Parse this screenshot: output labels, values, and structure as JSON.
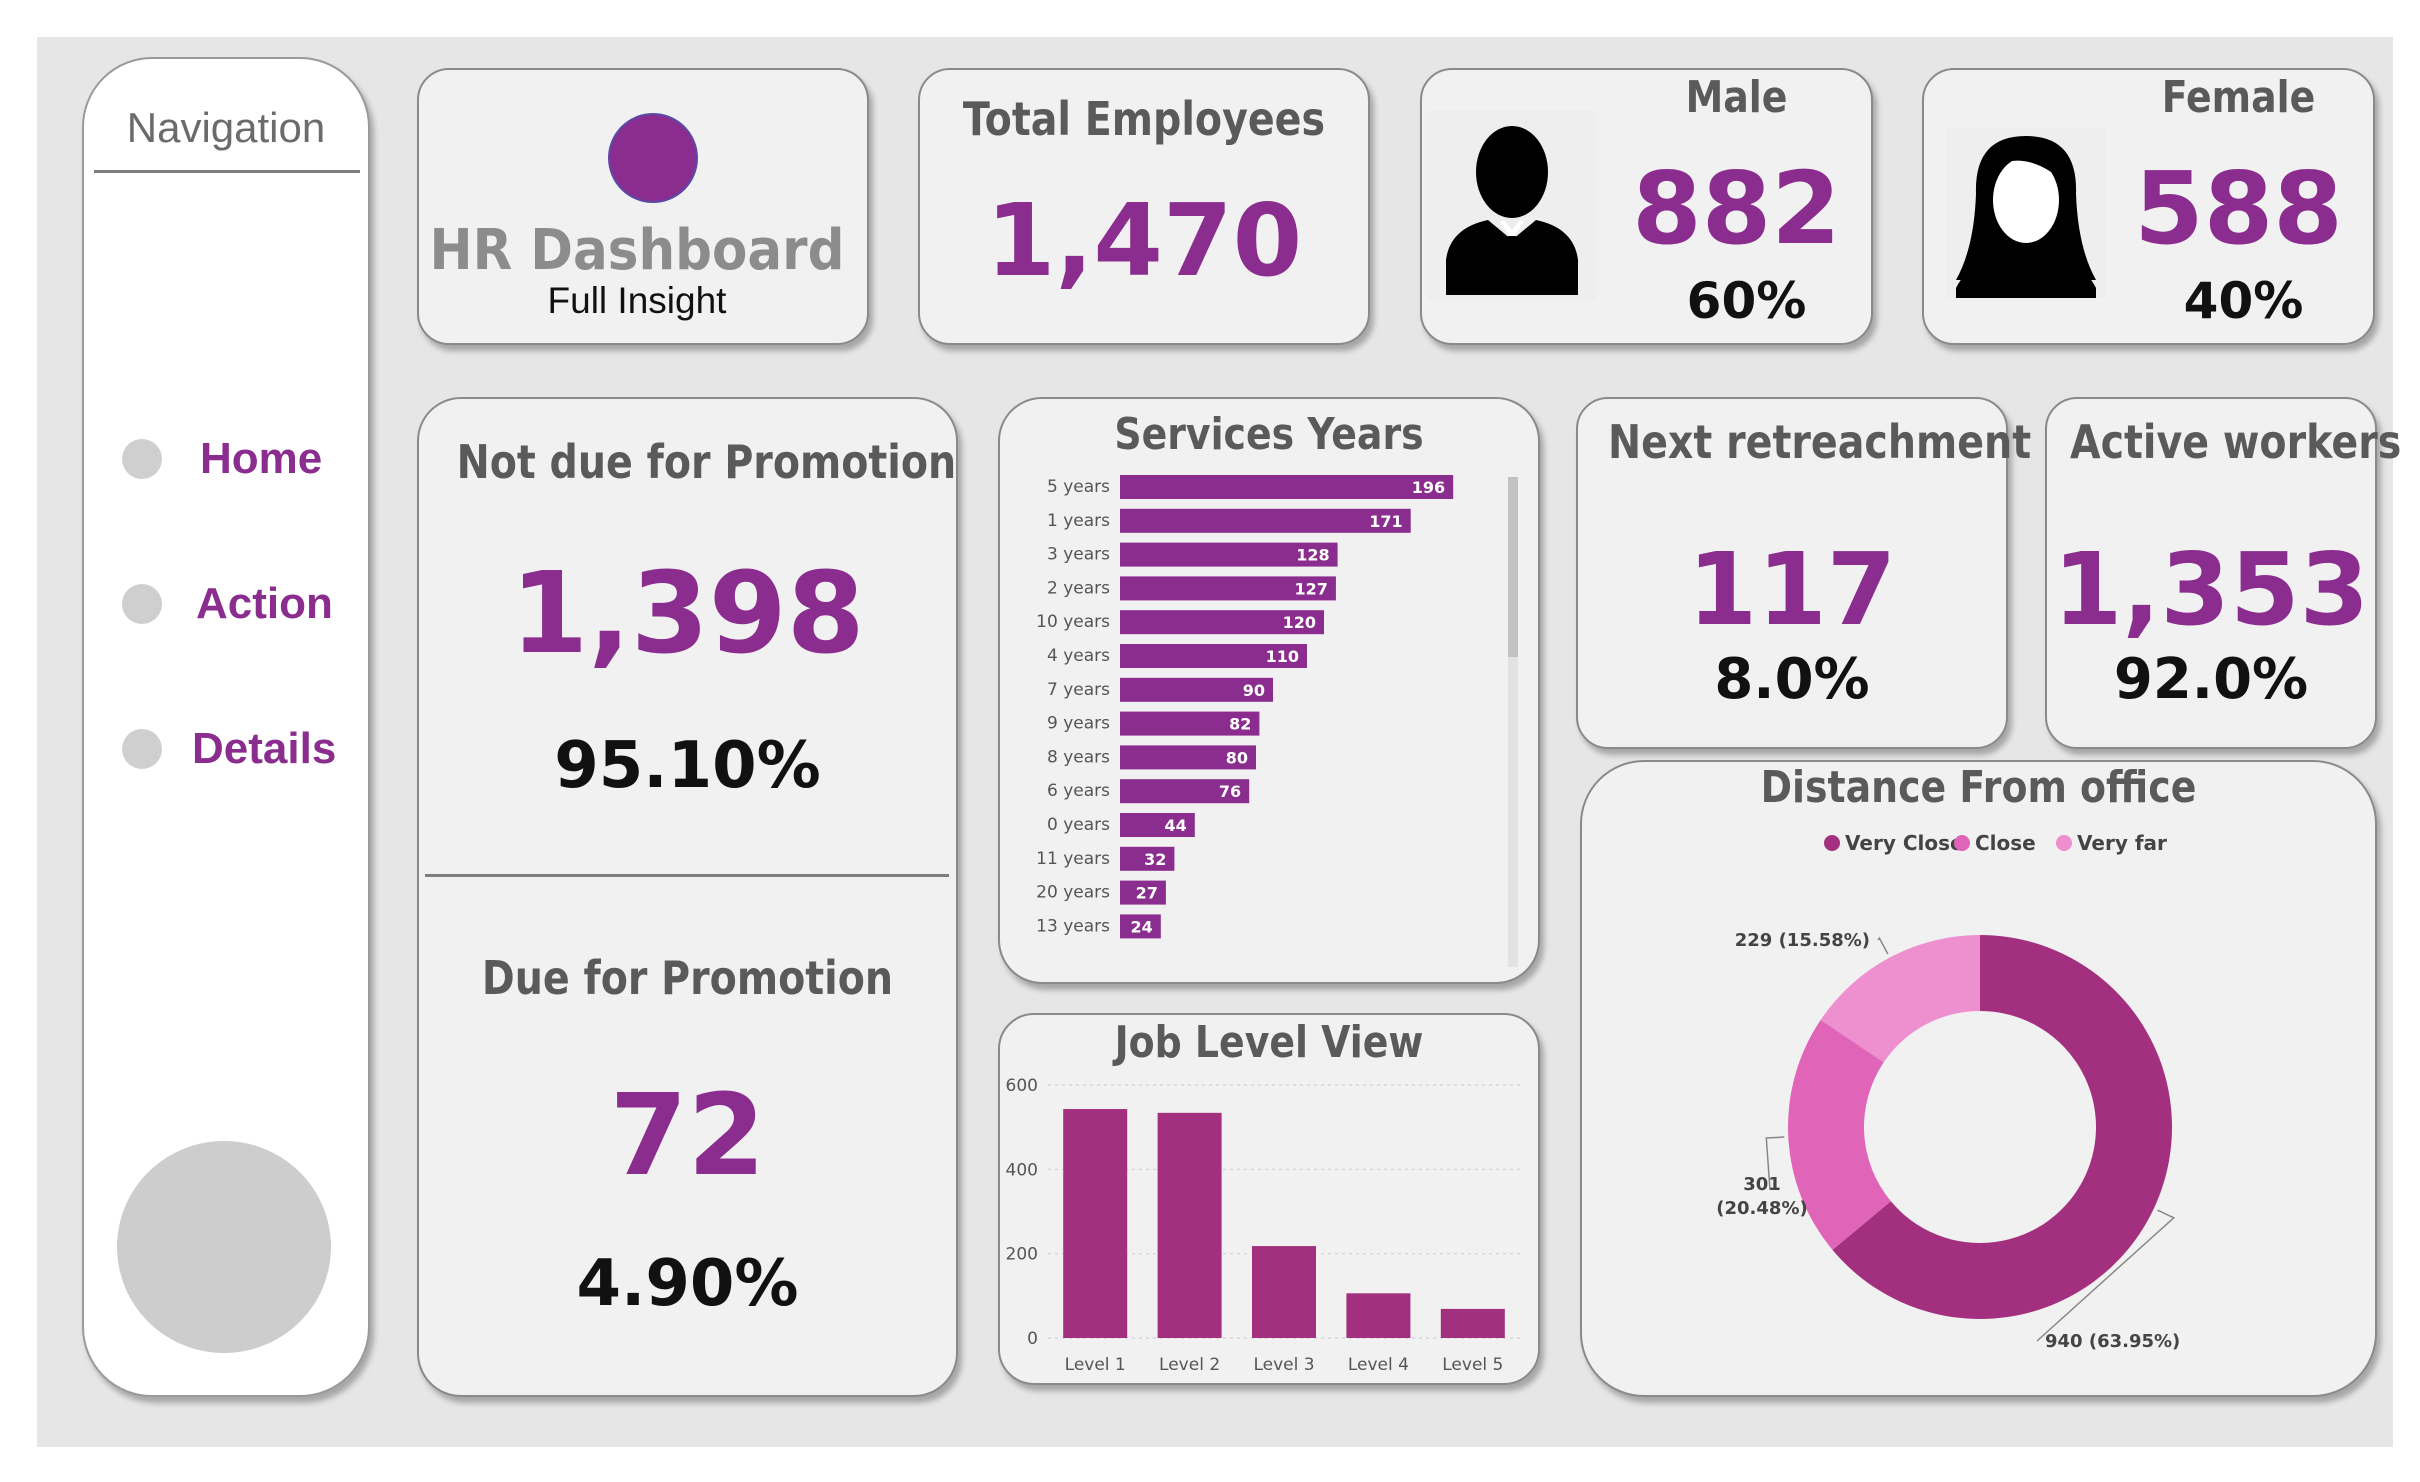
{
  "colors": {
    "accent": "#8a2d8e",
    "bar": "#8a2d8e",
    "jobbar": "#a3307e",
    "very_close": "#a3307e",
    "close": "#e064b8",
    "very_far": "#ee8fcf"
  },
  "nav": {
    "title": "Navigation",
    "items": [
      {
        "label": "Home",
        "icon": "circle-icon"
      },
      {
        "label": "Action",
        "icon": "circle-icon"
      },
      {
        "label": "Details",
        "icon": "circle-icon"
      }
    ]
  },
  "brand": {
    "title": "HR Dashboard",
    "subtitle": "Full Insight"
  },
  "kpis": {
    "total": {
      "title": "Total Employees",
      "value": "1,470"
    },
    "male": {
      "title": "Male",
      "value": "882",
      "pct": "60%",
      "icon": "male-user-icon"
    },
    "female": {
      "title": "Female",
      "value": "588",
      "pct": "40%",
      "icon": "female-user-icon"
    },
    "not_due": {
      "title": "Not due for Promotion",
      "value": "1,398",
      "pct": "95.10%"
    },
    "due": {
      "title": "Due for Promotion",
      "value": "72",
      "pct": "4.90%"
    },
    "retrench": {
      "title": "Next retreachment",
      "value": "117",
      "pct": "8.0%"
    },
    "active": {
      "title": "Active workers",
      "value": "1,353",
      "pct": "92.0%"
    }
  },
  "chart_data": [
    {
      "id": "services",
      "type": "bar",
      "orientation": "horizontal",
      "title": "Services Years",
      "categories": [
        "5 years",
        "1 years",
        "3 years",
        "2 years",
        "10 years",
        "4 years",
        "7 years",
        "9 years",
        "8 years",
        "6 years",
        "0 years",
        "11 years",
        "20 years",
        "13 years"
      ],
      "values": [
        196,
        171,
        128,
        127,
        120,
        110,
        90,
        82,
        80,
        76,
        44,
        32,
        27,
        24
      ],
      "xlim": [
        0,
        200
      ]
    },
    {
      "id": "joblevel",
      "type": "bar",
      "title": "Job Level View",
      "categories": [
        "Level 1",
        "Level 2",
        "Level 3",
        "Level 4",
        "Level 5"
      ],
      "values": [
        543,
        534,
        218,
        106,
        69
      ],
      "yticks": [
        "0",
        "200",
        "400",
        "600"
      ],
      "ylim": [
        0,
        600
      ],
      "grid": true
    },
    {
      "id": "distance",
      "type": "pie",
      "donut": true,
      "title": "Distance From office",
      "legend": [
        "Very Close",
        "Close",
        "Very far"
      ],
      "values": [
        940,
        301,
        229
      ],
      "labels": [
        "940 (63.95%)",
        "301 (20.48%)",
        "229 (15.58%)"
      ],
      "legend_position": "top"
    }
  ]
}
